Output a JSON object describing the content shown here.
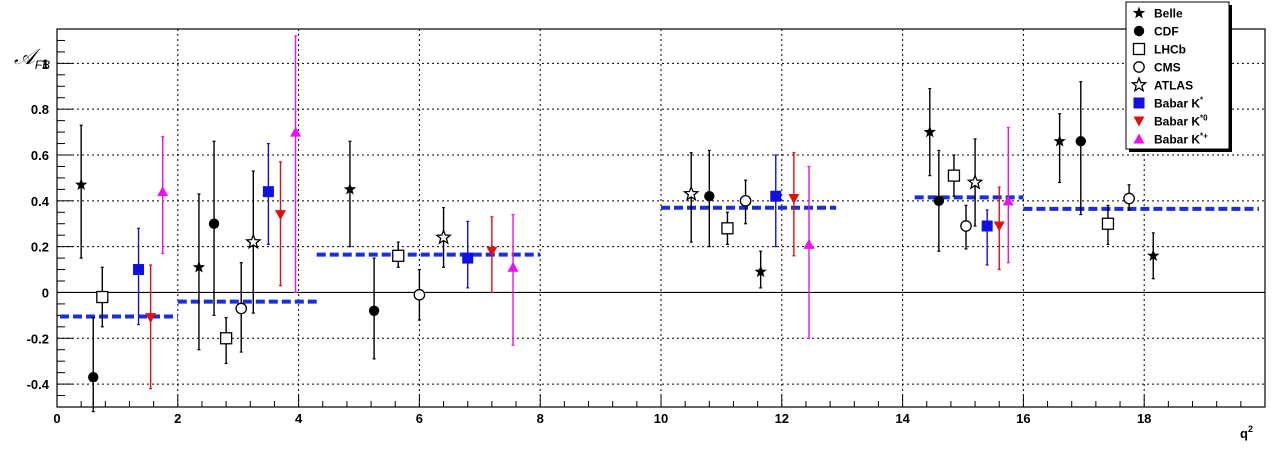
{
  "chart_data": {
    "type": "scatter",
    "title": "",
    "xlabel": "q²",
    "ylabel": "𝒜FB",
    "xlim": [
      0,
      20
    ],
    "ylim": [
      -0.5,
      1.15
    ],
    "x_ticks": [
      0,
      2,
      4,
      6,
      8,
      10,
      12,
      14,
      16,
      18
    ],
    "y_ticks": [
      -0.4,
      -0.2,
      0,
      0.2,
      0.4,
      0.6,
      0.8,
      1
    ],
    "grid": true,
    "legend_position": "top-right",
    "zero_line": true,
    "series": [
      {
        "name": "Belle",
        "marker": "star-filled",
        "color": "#000000",
        "points": [
          {
            "x": 0.4,
            "y": 0.47,
            "lo": 0.15,
            "hi": 0.73
          },
          {
            "x": 2.35,
            "y": 0.11,
            "lo": -0.25,
            "hi": 0.43
          },
          {
            "x": 4.85,
            "y": 0.45,
            "lo": 0.2,
            "hi": 0.66
          },
          {
            "x": 11.65,
            "y": 0.09,
            "lo": 0.02,
            "hi": 0.18
          },
          {
            "x": 14.45,
            "y": 0.7,
            "lo": 0.51,
            "hi": 0.89
          },
          {
            "x": 16.6,
            "y": 0.66,
            "lo": 0.48,
            "hi": 0.78
          },
          {
            "x": 18.15,
            "y": 0.16,
            "lo": 0.06,
            "hi": 0.26
          }
        ]
      },
      {
        "name": "CDF",
        "marker": "circle-filled",
        "color": "#000000",
        "points": [
          {
            "x": 0.6,
            "y": -0.37,
            "lo": -0.52,
            "hi": -0.11
          },
          {
            "x": 2.6,
            "y": 0.3,
            "lo": -0.1,
            "hi": 0.66
          },
          {
            "x": 5.25,
            "y": -0.08,
            "lo": -0.29,
            "hi": 0.15
          },
          {
            "x": 10.8,
            "y": 0.42,
            "lo": 0.2,
            "hi": 0.62
          },
          {
            "x": 14.6,
            "y": 0.4,
            "lo": 0.18,
            "hi": 0.62
          },
          {
            "x": 16.95,
            "y": 0.66,
            "lo": 0.34,
            "hi": 0.92
          }
        ]
      },
      {
        "name": "LHCb",
        "marker": "square-open",
        "color": "#000000",
        "points": [
          {
            "x": 0.75,
            "y": -0.02,
            "lo": -0.15,
            "hi": 0.11
          },
          {
            "x": 2.8,
            "y": -0.2,
            "lo": -0.31,
            "hi": -0.11
          },
          {
            "x": 5.65,
            "y": 0.16,
            "lo": 0.11,
            "hi": 0.22
          },
          {
            "x": 11.1,
            "y": 0.28,
            "lo": 0.21,
            "hi": 0.35
          },
          {
            "x": 14.85,
            "y": 0.51,
            "lo": 0.42,
            "hi": 0.6
          },
          {
            "x": 17.4,
            "y": 0.3,
            "lo": 0.21,
            "hi": 0.38
          }
        ]
      },
      {
        "name": "CMS",
        "marker": "circle-open",
        "color": "#000000",
        "points": [
          {
            "x": 3.05,
            "y": -0.07,
            "lo": -0.26,
            "hi": 0.13
          },
          {
            "x": 6.0,
            "y": -0.01,
            "lo": -0.12,
            "hi": 0.1
          },
          {
            "x": 11.4,
            "y": 0.4,
            "lo": 0.3,
            "hi": 0.49
          },
          {
            "x": 15.05,
            "y": 0.29,
            "lo": 0.19,
            "hi": 0.38
          },
          {
            "x": 17.75,
            "y": 0.41,
            "lo": 0.36,
            "hi": 0.47
          }
        ]
      },
      {
        "name": "ATLAS",
        "marker": "star-open",
        "color": "#000000",
        "points": [
          {
            "x": 3.25,
            "y": 0.22,
            "lo": -0.09,
            "hi": 0.53
          },
          {
            "x": 6.4,
            "y": 0.24,
            "lo": 0.11,
            "hi": 0.37
          },
          {
            "x": 10.5,
            "y": 0.43,
            "lo": 0.22,
            "hi": 0.61
          },
          {
            "x": 15.2,
            "y": 0.48,
            "lo": 0.29,
            "hi": 0.67
          }
        ]
      },
      {
        "name": "Babar K*",
        "marker": "square-filled",
        "color": "#1010e0",
        "points": [
          {
            "x": 1.35,
            "y": 0.1,
            "lo": -0.14,
            "hi": 0.28
          },
          {
            "x": 3.5,
            "y": 0.44,
            "lo": 0.21,
            "hi": 0.65
          },
          {
            "x": 6.8,
            "y": 0.15,
            "lo": 0.02,
            "hi": 0.31
          },
          {
            "x": 11.9,
            "y": 0.42,
            "lo": 0.2,
            "hi": 0.6
          },
          {
            "x": 15.4,
            "y": 0.29,
            "lo": 0.12,
            "hi": 0.36
          }
        ]
      },
      {
        "name": "Babar K*0",
        "marker": "triangle-down",
        "color": "#e01010",
        "points": [
          {
            "x": 1.55,
            "y": -0.11,
            "lo": -0.42,
            "hi": 0.12
          },
          {
            "x": 3.7,
            "y": 0.34,
            "lo": 0.03,
            "hi": 0.57
          },
          {
            "x": 7.2,
            "y": 0.18,
            "lo": 0.0,
            "hi": 0.33
          },
          {
            "x": 12.2,
            "y": 0.41,
            "lo": 0.16,
            "hi": 0.61
          },
          {
            "x": 15.6,
            "y": 0.29,
            "lo": 0.1,
            "hi": 0.46
          }
        ]
      },
      {
        "name": "Babar K*+",
        "marker": "triangle-up",
        "color": "#ee10ee",
        "points": [
          {
            "x": 1.75,
            "y": 0.44,
            "lo": 0.17,
            "hi": 0.68
          },
          {
            "x": 3.95,
            "y": 0.7,
            "lo": 0.0,
            "hi": 1.12
          },
          {
            "x": 7.55,
            "y": 0.11,
            "lo": -0.23,
            "hi": 0.34
          },
          {
            "x": 12.45,
            "y": 0.21,
            "lo": -0.2,
            "hi": 0.55
          },
          {
            "x": 15.75,
            "y": 0.4,
            "lo": 0.13,
            "hi": 0.72
          }
        ]
      }
    ],
    "predictions": {
      "color": "#1a2fd6",
      "segments": [
        {
          "x0": 0.05,
          "x1": 2.0,
          "y": -0.105
        },
        {
          "x0": 2.0,
          "x1": 4.3,
          "y": -0.04
        },
        {
          "x0": 4.3,
          "x1": 8.0,
          "y": 0.165
        },
        {
          "x0": 10.0,
          "x1": 12.9,
          "y": 0.37
        },
        {
          "x0": 14.2,
          "x1": 16.0,
          "y": 0.415
        },
        {
          "x0": 16.0,
          "x1": 19.9,
          "y": 0.365
        }
      ]
    }
  },
  "legend": {
    "entries": [
      {
        "label": "Belle",
        "sup": ""
      },
      {
        "label": "CDF",
        "sup": ""
      },
      {
        "label": "LHCb",
        "sup": ""
      },
      {
        "label": "CMS",
        "sup": ""
      },
      {
        "label": "ATLAS",
        "sup": ""
      },
      {
        "label": "Babar K",
        "sup": "*"
      },
      {
        "label": "Babar K",
        "sup": "*0"
      },
      {
        "label": "Babar K",
        "sup": "*+"
      }
    ]
  }
}
